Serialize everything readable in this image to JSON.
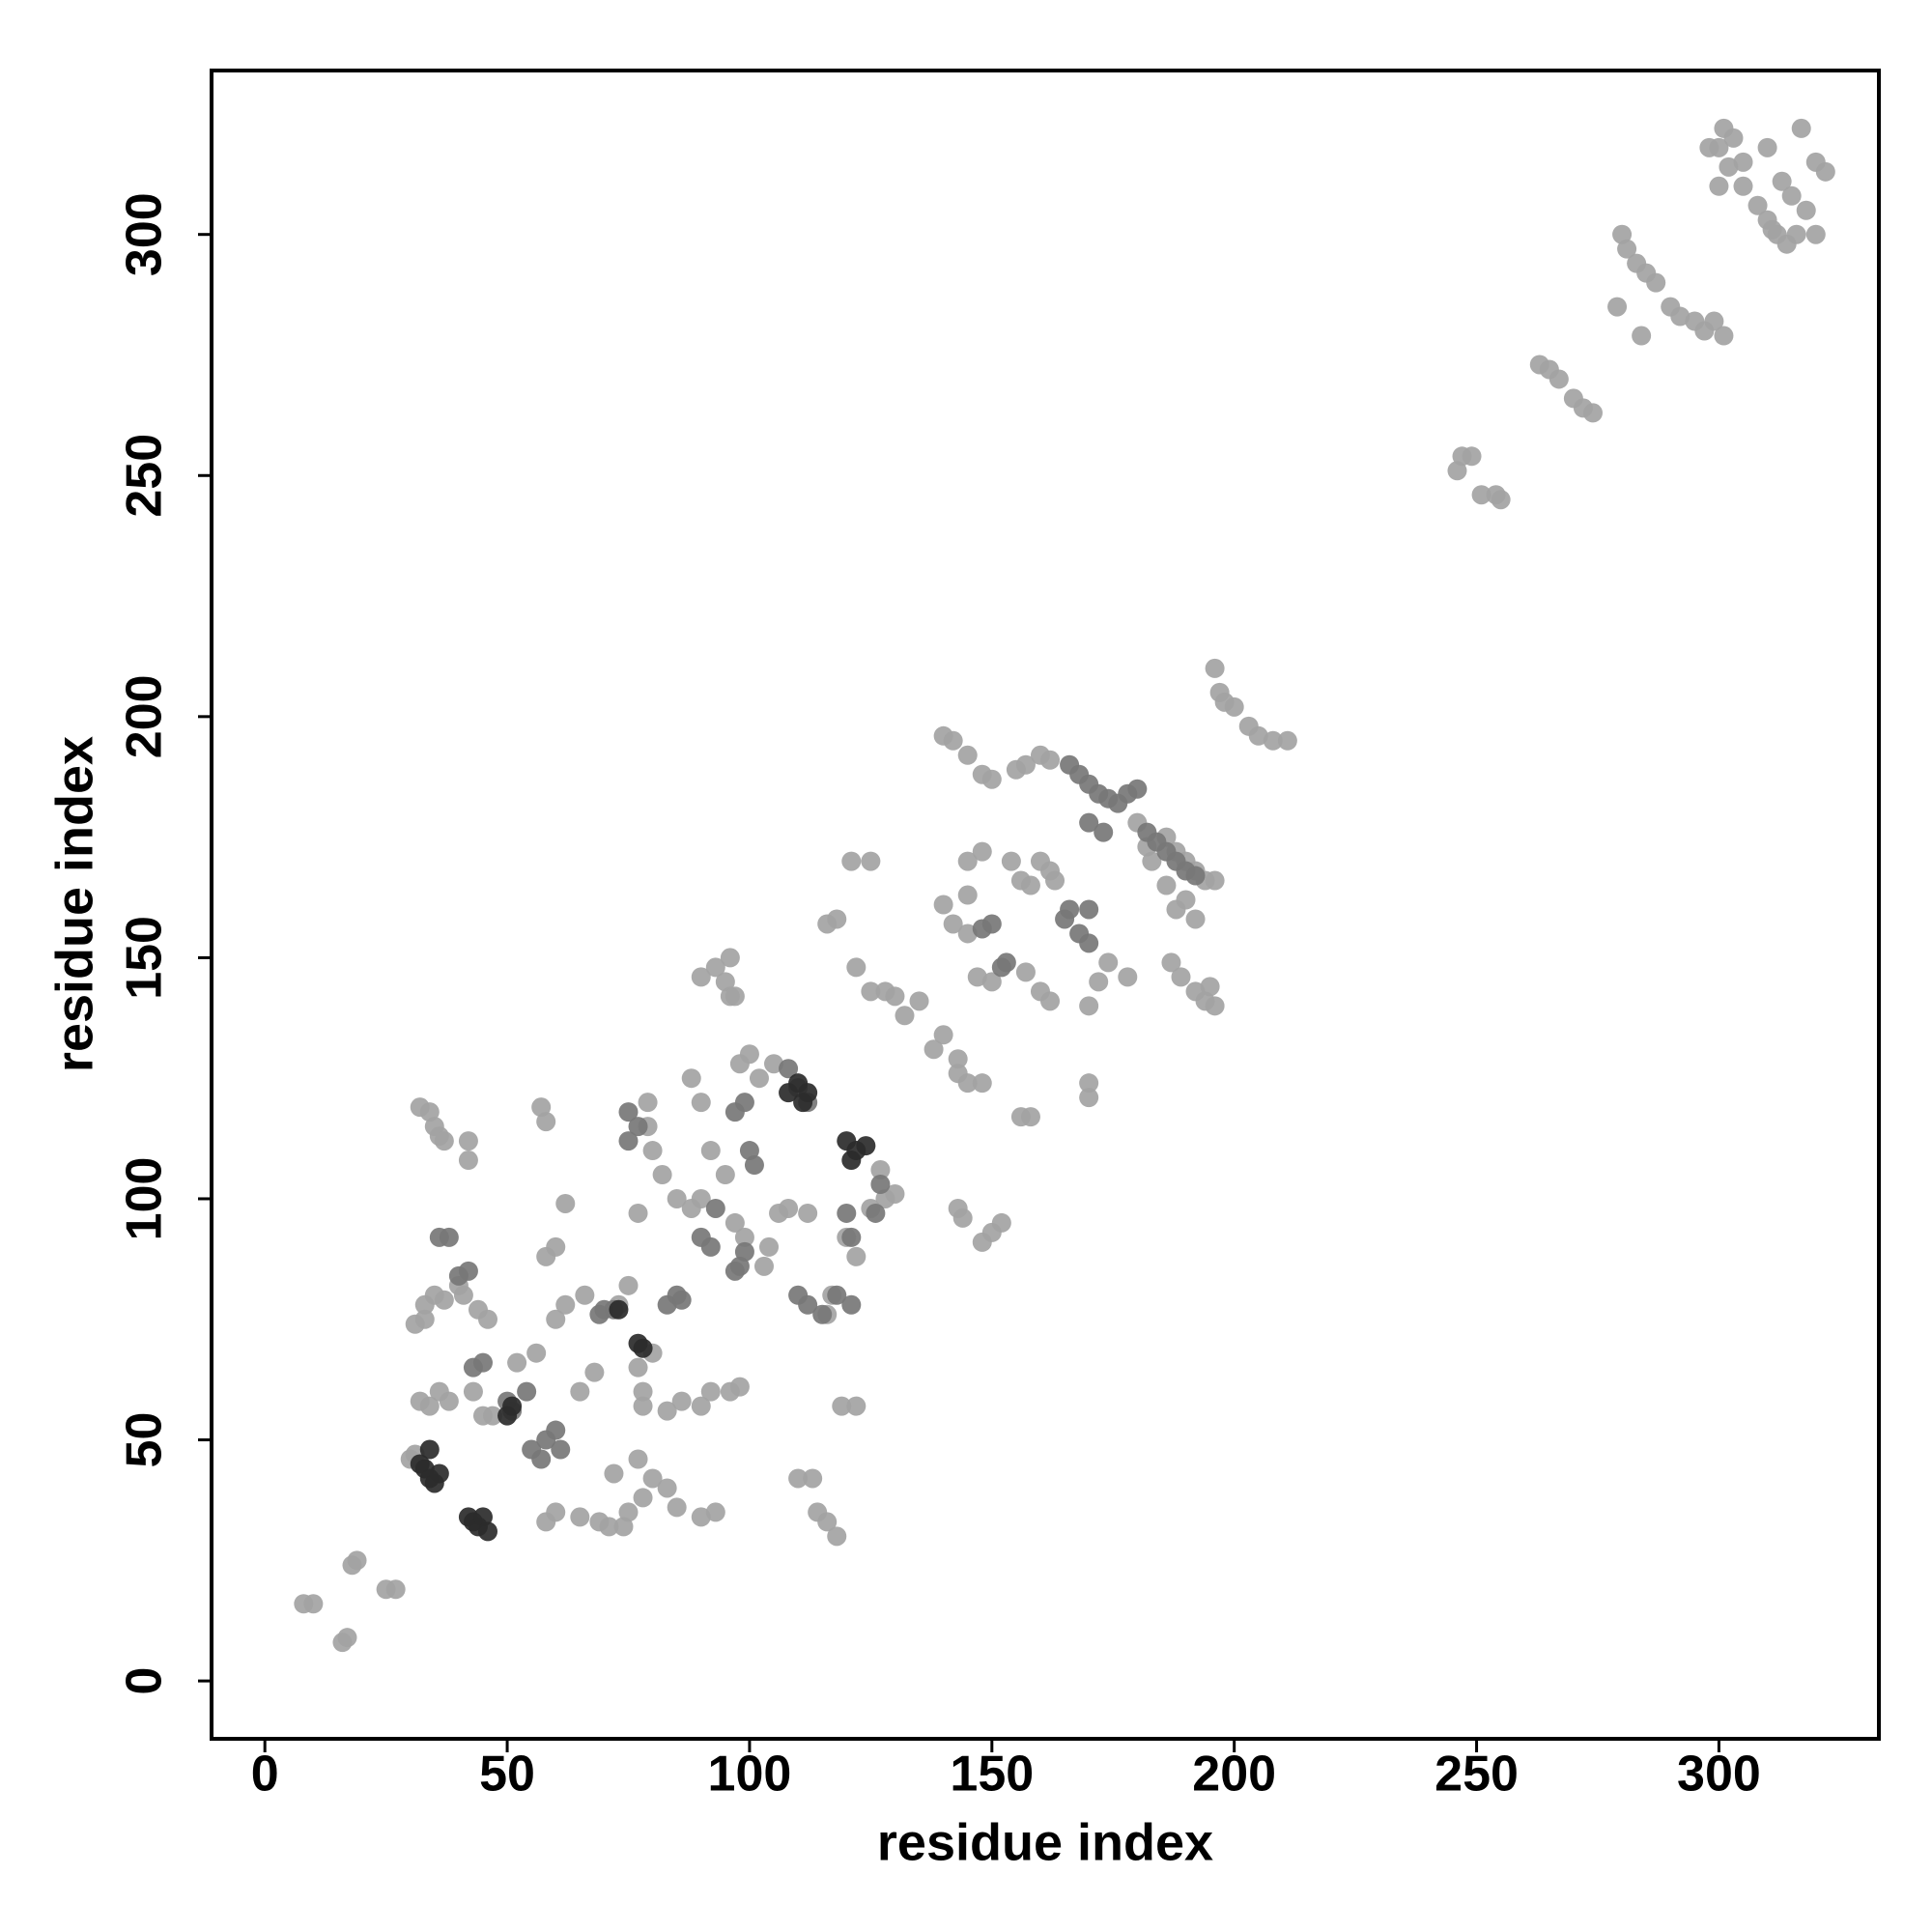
{
  "chart_data": {
    "type": "scatter",
    "x_label": "residue index",
    "y_label": "residue index",
    "xlim": [
      -11,
      333
    ],
    "ylim": [
      -12,
      334
    ],
    "xticks": [
      0,
      50,
      100,
      150,
      200,
      250,
      300
    ],
    "yticks": [
      0,
      50,
      100,
      150,
      200,
      250,
      300
    ],
    "series": [
      {
        "color": "#a3a3a3",
        "x": [
          8,
          10,
          16,
          17,
          19,
          18,
          25,
          27,
          30,
          31,
          32,
          34,
          35,
          36,
          37,
          42,
          42,
          33,
          35,
          37,
          40,
          41,
          44,
          46,
          33,
          31,
          32,
          34,
          36,
          38,
          43,
          45,
          47,
          52,
          56,
          58,
          60,
          62,
          57,
          58,
          60,
          62,
          66,
          65,
          68,
          73,
          75,
          77,
          79,
          79,
          80,
          82,
          85,
          88,
          90,
          92,
          95,
          97,
          99,
          103,
          104,
          102,
          100,
          105,
          98,
          90,
          88,
          80,
          83,
          85,
          90,
          93,
          75,
          74,
          71,
          78,
          77,
          58,
          60,
          65,
          72,
          83,
          86,
          90,
          92,
          96,
          98,
          80,
          78,
          78,
          77,
          69,
          110,
          113,
          114,
          116,
          118,
          119,
          122,
          117,
          116,
          120,
          122,
          125,
          127,
          128,
          130,
          112,
          108,
          106,
          121,
          125,
          116,
          118,
          122,
          125,
          128,
          130,
          132,
          135,
          140,
          138,
          143,
          143,
          145,
          148,
          143,
          144,
          148,
          150,
          152,
          156,
          158,
          170,
          170,
          90,
          93,
          95,
          96,
          97,
          96,
          140,
          142,
          145,
          148,
          150,
          155,
          157,
          160,
          162,
          140,
          142,
          145,
          145,
          145,
          148,
          154,
          156,
          158,
          160,
          162,
          163,
          147,
          150,
          157,
          160,
          162,
          170,
          172,
          174,
          178,
          180,
          182,
          183,
          186,
          188,
          190,
          192,
          187,
          189,
          192,
          194,
          196,
          195,
          186,
          188,
          190,
          192,
          194,
          196,
          196,
          197,
          198,
          200,
          203,
          205,
          208,
          211,
          246,
          247,
          249,
          251,
          254,
          255,
          263,
          265,
          267,
          270,
          272,
          274,
          280,
          281,
          283,
          285,
          287,
          290,
          292,
          295,
          297,
          299,
          301,
          279,
          284,
          298,
          300,
          301,
          303,
          302,
          300,
          305,
          308,
          310,
          312,
          314,
          316,
          318,
          320,
          311,
          315,
          317,
          320,
          322,
          305,
          310,
          313
        ],
        "y": [
          16,
          16,
          8,
          9,
          25,
          24,
          19,
          19,
          46,
          47,
          119,
          118,
          115,
          113,
          112,
          112,
          108,
          78,
          80,
          79,
          82,
          80,
          77,
          75,
          75,
          74,
          58,
          57,
          60,
          58,
          60,
          55,
          55,
          66,
          68,
          88,
          90,
          99,
          119,
          116,
          75,
          78,
          80,
          60,
          64,
          78,
          82,
          97,
          115,
          120,
          110,
          105,
          100,
          98,
          100,
          110,
          105,
          95,
          92,
          86,
          90,
          125,
          130,
          128,
          128,
          120,
          125,
          42,
          40,
          36,
          34,
          35,
          35,
          32,
          32,
          38,
          46,
          33,
          35,
          34,
          43,
          56,
          58,
          57,
          60,
          60,
          61,
          68,
          60,
          57,
          65,
          33,
          42,
          42,
          35,
          33,
          30,
          57,
          57,
          80,
          76,
          92,
          88,
          98,
          106,
          100,
          101,
          97,
          98,
          97,
          170,
          170,
          157,
          158,
          148,
          143,
          143,
          142,
          138,
          141,
          134,
          131,
          129,
          126,
          124,
          124,
          98,
          96,
          91,
          93,
          95,
          117,
          117,
          124,
          121,
          146,
          148,
          145,
          142,
          142,
          150,
          196,
          195,
          192,
          188,
          187,
          189,
          190,
          192,
          191,
          161,
          157,
          155,
          163,
          170,
          172,
          170,
          166,
          165,
          170,
          168,
          166,
          146,
          145,
          147,
          143,
          141,
          140,
          145,
          149,
          146,
          178,
          173,
          170,
          165,
          160,
          162,
          158,
          149,
          146,
          143,
          141,
          140,
          144,
          175,
          172,
          170,
          168,
          166,
          166,
          210,
          205,
          203,
          202,
          198,
          196,
          195,
          195,
          251,
          254,
          254,
          246,
          246,
          245,
          273,
          272,
          270,
          266,
          264,
          263,
          300,
          297,
          294,
          292,
          290,
          285,
          283,
          282,
          280,
          282,
          279,
          285,
          279,
          318,
          318,
          322,
          320,
          314,
          310,
          310,
          306,
          303,
          300,
          298,
          300,
          305,
          300,
          301,
          308,
          322,
          315,
          313,
          315,
          318,
          311
        ]
      },
      {
        "color": "#777777",
        "x": [
          40,
          42,
          36,
          38,
          43,
          45,
          50,
          51,
          54,
          58,
          60,
          61,
          55,
          57,
          70,
          72,
          69,
          83,
          85,
          86,
          90,
          92,
          93,
          97,
          98,
          99,
          100,
          101,
          110,
          112,
          115,
          118,
          121,
          126,
          127,
          120,
          121,
          75,
          75,
          77,
          97,
          99,
          108,
          110,
          112,
          166,
          168,
          170,
          165,
          170,
          148,
          150,
          152,
          153,
          166,
          168,
          170,
          172,
          174,
          176,
          178,
          180,
          182,
          184,
          186,
          188,
          190,
          192,
          170,
          173
        ],
        "y": [
          84,
          85,
          92,
          92,
          65,
          66,
          58,
          56,
          60,
          50,
          52,
          48,
          48,
          46,
          77,
          77,
          76,
          78,
          80,
          79,
          92,
          90,
          98,
          85,
          86,
          89,
          110,
          107,
          80,
          78,
          76,
          80,
          78,
          97,
          103,
          97,
          92,
          118,
          112,
          115,
          118,
          120,
          127,
          123,
          120,
          160,
          155,
          153,
          158,
          160,
          156,
          157,
          148,
          149,
          190,
          188,
          186,
          184,
          183,
          182,
          184,
          185,
          176,
          174,
          172,
          170,
          168,
          167,
          178,
          176
        ]
      },
      {
        "color": "#2b2b2b",
        "x": [
          32,
          33,
          34,
          35,
          36,
          34,
          42,
          43,
          44,
          45,
          46,
          110,
          112,
          111,
          108,
          120,
          122,
          121,
          124,
          73,
          77,
          78,
          50,
          51
        ],
        "y": [
          45,
          44,
          42,
          41,
          43,
          48,
          34,
          33,
          32,
          34,
          31,
          124,
          122,
          120,
          122,
          112,
          110,
          108,
          111,
          77,
          70,
          69,
          55,
          57
        ]
      }
    ]
  }
}
